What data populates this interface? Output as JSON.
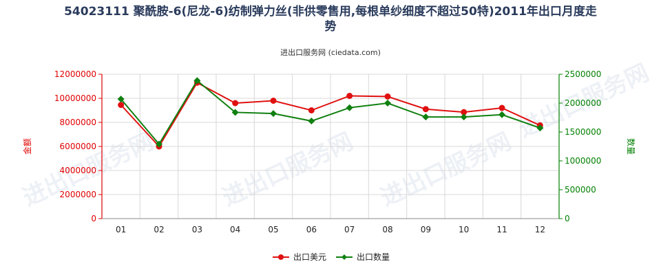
{
  "title_line1": "54023111 聚酰胺-6(尼龙-6)纺制弹力丝(非供零售用,每根单纱细度不超过50特)2011年出口月度走",
  "title_line2": "势",
  "subtitle": "进出口服务网 (ciedata.com)",
  "watermark": "进出口服务网",
  "colors": {
    "usd": "#e01010",
    "qty": "#108010"
  },
  "chart_data": {
    "type": "line",
    "categories": [
      "01",
      "02",
      "03",
      "04",
      "05",
      "06",
      "07",
      "08",
      "09",
      "10",
      "11",
      "12"
    ],
    "y_left": {
      "label": "金额",
      "ylim": [
        0,
        12000000
      ],
      "ticks": [
        0,
        2000000,
        4000000,
        6000000,
        8000000,
        10000000,
        12000000
      ]
    },
    "y_right": {
      "label": "数量",
      "ylim": [
        0,
        2500000
      ],
      "ticks": [
        0,
        500000,
        1000000,
        1500000,
        2000000,
        2500000
      ]
    },
    "series": [
      {
        "name": "出口美元",
        "axis": "left",
        "values": [
          9450000,
          6000000,
          11300000,
          9600000,
          9800000,
          9000000,
          10200000,
          10150000,
          9100000,
          8850000,
          9200000,
          7750000
        ]
      },
      {
        "name": "出口数量",
        "axis": "right",
        "values": [
          2070000,
          1290000,
          2390000,
          1840000,
          1820000,
          1690000,
          1920000,
          2000000,
          1760000,
          1760000,
          1800000,
          1570000
        ]
      }
    ],
    "legend_position": "bottom-center",
    "grid": true
  }
}
